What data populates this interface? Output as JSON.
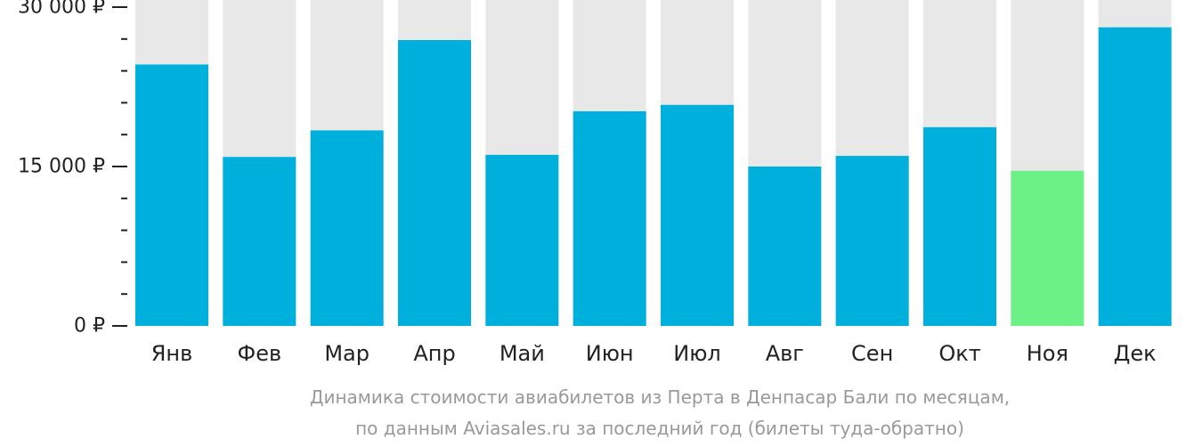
{
  "chart_data": {
    "type": "bar",
    "categories": [
      "Янв",
      "Фев",
      "Мар",
      "Апр",
      "Май",
      "Июн",
      "Июл",
      "Авг",
      "Сен",
      "Окт",
      "Ноя",
      "Дек"
    ],
    "values": [
      24600,
      15900,
      18400,
      26900,
      16100,
      20200,
      20800,
      15000,
      16000,
      18700,
      14600,
      28100
    ],
    "ylim": [
      0,
      30000
    ],
    "yticks": [
      0,
      15000,
      30000
    ],
    "ytick_labels": [
      "0 ₽",
      "15 000 ₽",
      "30 000 ₽"
    ],
    "minor_ytick_step": 3000,
    "ymax_background_bars": true,
    "bar_color": "#00b0dc",
    "highlight_color": "#6cf186",
    "highlight_index": 10,
    "background_bar_color": "#e8e8e8",
    "caption_lines": [
      "Динамика стоимости авиабилетов из Перта в Денпасар Бали по месяцам,",
      "по данным Aviasales.ru за последний год (билеты туда-обратно)"
    ],
    "grid": false,
    "legend": "none"
  }
}
